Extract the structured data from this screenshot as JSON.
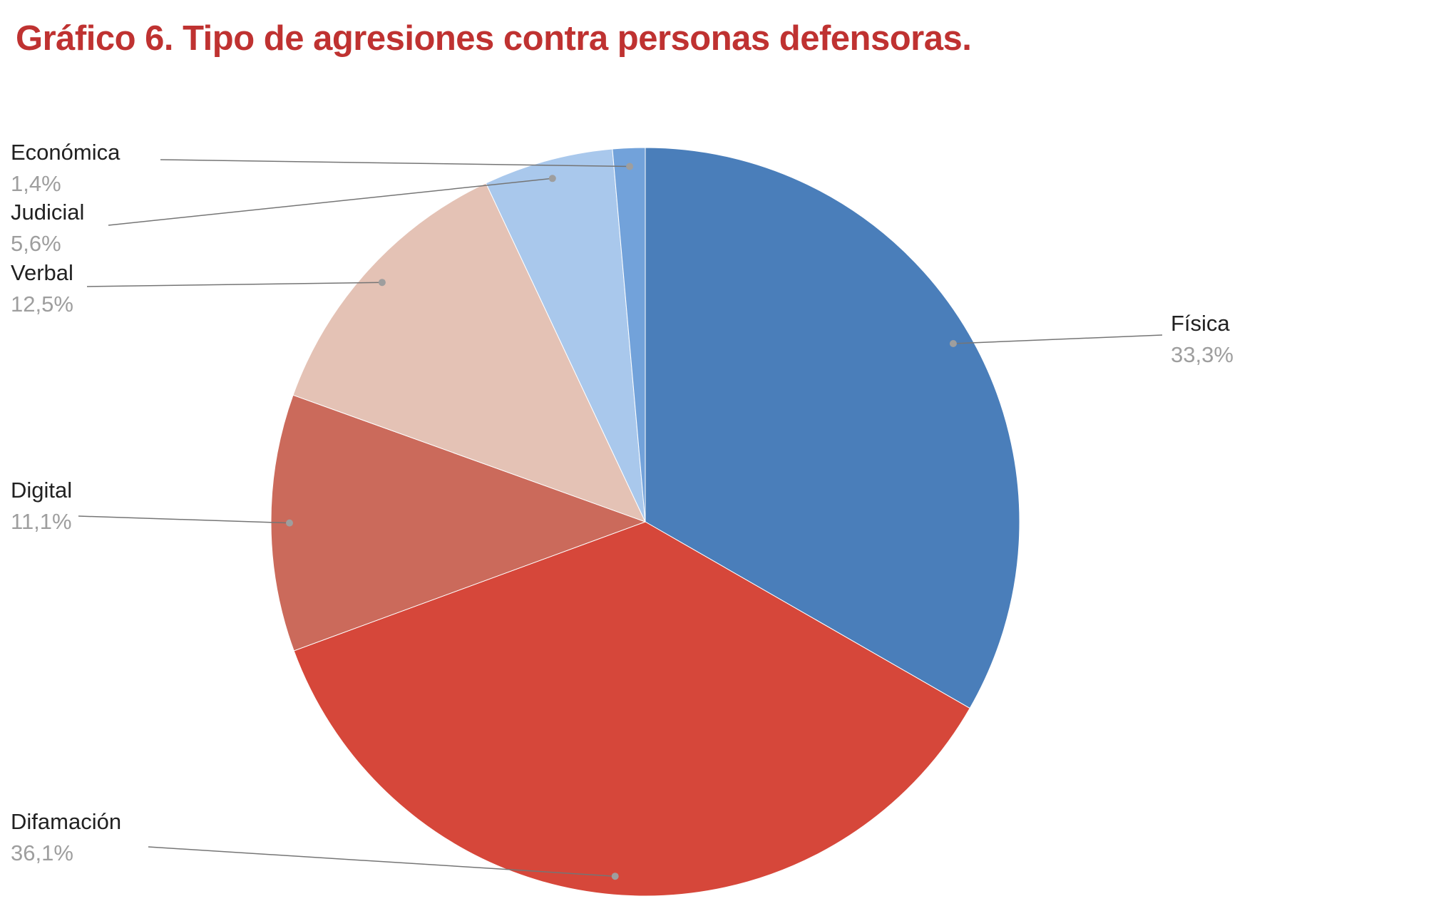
{
  "title": {
    "text": "Gráfico 6. Tipo de agresiones contra personas defensoras.",
    "color": "#bf3231"
  },
  "chart_data": {
    "type": "pie",
    "title": "Gráfico 6. Tipo de agresiones contra personas defensoras.",
    "start_angle_deg": 0,
    "direction": "clockwise",
    "units": "%",
    "slices": [
      {
        "id": "fisica",
        "label": "Física",
        "pct_label": "33,3%",
        "value": 33.3,
        "color": "#4a7eba"
      },
      {
        "id": "difamacion",
        "label": "Difamación",
        "pct_label": "36,1%",
        "value": 36.1,
        "color": "#d6473a"
      },
      {
        "id": "digital",
        "label": "Digital",
        "pct_label": "11,1%",
        "value": 11.1,
        "color": "#cb6a5b"
      },
      {
        "id": "verbal",
        "label": "Verbal",
        "pct_label": "12,5%",
        "value": 12.5,
        "color": "#e4c2b5"
      },
      {
        "id": "judicial",
        "label": "Judicial",
        "pct_label": "5,6%",
        "value": 5.6,
        "color": "#a9c8ec"
      },
      {
        "id": "economica",
        "label": "Económica",
        "pct_label": "1,4%",
        "value": 1.4,
        "color": "#72a2da"
      }
    ],
    "label_text_color": "#212121",
    "pct_text_color": "#9e9e9e",
    "leader_line_color": "#757575",
    "leader_dot_color": "#9e9e9e",
    "slice_border_color": "#ffffff",
    "legend_position": "outside-callouts"
  }
}
